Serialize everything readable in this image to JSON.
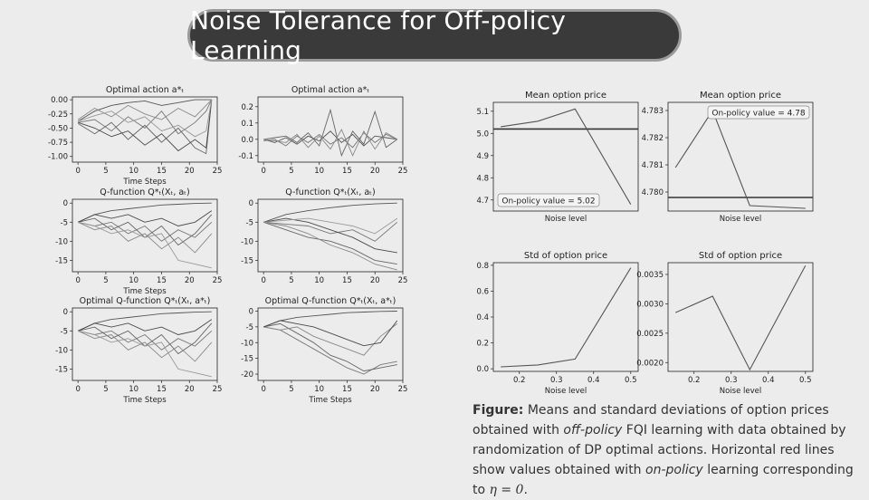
{
  "slide": {
    "title": "Noise Tolerance for Off-policy Learning",
    "caption": {
      "label": "Figure:",
      "p1": "Means and standard deviations of option prices obtained with",
      "i1": "off-policy",
      "p2": "FQI learning with data obtained by randomization of DP optimal actions. Horizontal red lines show values obtained with",
      "i2": "on-policy",
      "p3": "learning corresponding to",
      "math": "η = 0",
      "p4": "."
    }
  },
  "colors": {
    "background": "#ececec",
    "title_pill": "#3a3a3a",
    "line": "#555555",
    "reference_line": "#333333"
  },
  "chart_data": [
    {
      "id": "left-1",
      "type": "line",
      "title": "Optimal action a*ₜ",
      "xlabel": "Time Steps",
      "xlim": [
        -1,
        25
      ],
      "ylim": [
        -1.1,
        0.05
      ],
      "xticks": [
        "0",
        "5",
        "10",
        "15",
        "20",
        "25"
      ],
      "yticks": [
        "0.00",
        "-0.25",
        "-0.50",
        "-0.75",
        "-1.00"
      ],
      "series_note": "trajectories",
      "series": [
        {
          "x": [
            0,
            3,
            6,
            9,
            12,
            15,
            18,
            21,
            23,
            24
          ],
          "values": [
            -0.38,
            -0.2,
            -0.1,
            -0.05,
            -0.02,
            -0.1,
            -0.05,
            0.0,
            0.0,
            0.0
          ]
        },
        {
          "x": [
            0,
            3,
            6,
            9,
            12,
            15,
            18,
            21,
            23,
            24
          ],
          "values": [
            -0.4,
            -0.35,
            -0.55,
            -0.3,
            -0.5,
            -0.2,
            -0.6,
            -0.4,
            -0.2,
            0.0
          ]
        },
        {
          "x": [
            0,
            3,
            6,
            9,
            12,
            15,
            18,
            21,
            23,
            24
          ],
          "values": [
            -0.42,
            -0.6,
            -0.4,
            -0.7,
            -0.45,
            -0.75,
            -0.5,
            -0.85,
            -0.95,
            0.0
          ]
        },
        {
          "x": [
            0,
            3,
            6,
            9,
            12,
            15,
            18,
            21,
            23,
            24
          ],
          "values": [
            -0.35,
            -0.15,
            -0.3,
            -0.1,
            -0.25,
            -0.35,
            -0.15,
            -0.3,
            -0.1,
            0.0
          ]
        },
        {
          "x": [
            0,
            3,
            6,
            9,
            12,
            15,
            18,
            21,
            23,
            24
          ],
          "values": [
            -0.4,
            -0.5,
            -0.65,
            -0.55,
            -0.8,
            -0.6,
            -0.9,
            -0.7,
            -0.85,
            0.0
          ]
        },
        {
          "x": [
            0,
            3,
            6,
            9,
            12,
            15,
            18,
            21,
            23,
            24
          ],
          "values": [
            -0.38,
            -0.28,
            -0.2,
            -0.4,
            -0.3,
            -0.55,
            -0.45,
            -0.65,
            -0.55,
            0.0
          ]
        }
      ]
    },
    {
      "id": "left-2",
      "type": "line",
      "title": "Optimal action a*ₜ",
      "xlabel": "",
      "xlim": [
        -1,
        25
      ],
      "ylim": [
        -0.14,
        0.26
      ],
      "xticks": [
        "0",
        "5",
        "10",
        "15",
        "20",
        "25"
      ],
      "yticks": [
        "0.2",
        "0.1",
        "0.0",
        "-0.1"
      ],
      "series": [
        {
          "x": [
            0,
            2,
            4,
            6,
            8,
            10,
            12,
            14,
            16,
            18,
            20,
            22,
            24
          ],
          "values": [
            0.0,
            -0.02,
            0.01,
            -0.03,
            0.02,
            -0.01,
            0.05,
            -0.02,
            0.03,
            -0.04,
            0.02,
            0.01,
            0.0
          ]
        },
        {
          "x": [
            0,
            2,
            4,
            6,
            8,
            10,
            12,
            14,
            16,
            18,
            20,
            22,
            24
          ],
          "values": [
            -0.01,
            0.0,
            -0.04,
            0.02,
            -0.02,
            0.03,
            -0.03,
            0.01,
            -0.05,
            0.04,
            -0.02,
            0.03,
            0.0
          ]
        },
        {
          "x": [
            0,
            2,
            4,
            6,
            8,
            10,
            12,
            14,
            16,
            18,
            20,
            22,
            24
          ],
          "values": [
            0.0,
            0.01,
            0.02,
            -0.02,
            0.04,
            -0.04,
            0.18,
            -0.1,
            0.05,
            -0.03,
            0.17,
            -0.05,
            0.0
          ]
        },
        {
          "x": [
            0,
            2,
            4,
            6,
            8,
            10,
            12,
            14,
            16,
            18,
            20,
            22,
            24
          ],
          "values": [
            0.0,
            -0.01,
            -0.02,
            0.03,
            -0.05,
            0.02,
            -0.06,
            0.06,
            -0.1,
            0.05,
            -0.06,
            0.04,
            0.0
          ]
        }
      ]
    },
    {
      "id": "left-3",
      "type": "line",
      "title": "Q-function Q*ₜ(Xₜ, aₜ)",
      "xlabel": "Time Steps",
      "xlim": [
        -1,
        25
      ],
      "ylim": [
        -18,
        1
      ],
      "xticks": [
        "0",
        "5",
        "10",
        "15",
        "20",
        "25"
      ],
      "yticks": [
        "0",
        "-5",
        "-10",
        "-15"
      ],
      "series": [
        {
          "x": [
            0,
            3,
            6,
            9,
            12,
            15,
            18,
            21,
            24
          ],
          "values": [
            -5,
            -3,
            -2,
            -1.5,
            -1,
            -0.5,
            -0.3,
            -0.1,
            0
          ]
        },
        {
          "x": [
            0,
            3,
            6,
            9,
            12,
            15,
            18,
            21,
            24
          ],
          "values": [
            -5,
            -6,
            -5,
            -8,
            -6,
            -10,
            -7,
            -9,
            -5
          ]
        },
        {
          "x": [
            0,
            3,
            6,
            9,
            12,
            15,
            18,
            21,
            24
          ],
          "values": [
            -5,
            -4,
            -7,
            -5,
            -9,
            -6,
            -11,
            -8,
            -3
          ]
        },
        {
          "x": [
            0,
            3,
            6,
            9,
            12,
            15,
            18,
            21,
            24
          ],
          "values": [
            -5,
            -7,
            -6,
            -10,
            -8,
            -12,
            -9,
            -13,
            -8
          ]
        },
        {
          "x": [
            0,
            3,
            6,
            9,
            12,
            15,
            18,
            21,
            24
          ],
          "values": [
            -5,
            -3,
            -4,
            -3,
            -5,
            -4,
            -6,
            -5,
            -2
          ]
        },
        {
          "x": [
            0,
            3,
            6,
            9,
            12,
            15,
            18,
            21,
            24
          ],
          "values": [
            -5,
            -6,
            -8,
            -7,
            -9,
            -8,
            -15,
            -16,
            -17
          ]
        }
      ]
    },
    {
      "id": "left-4",
      "type": "line",
      "title": "Q-function Q*ₜ(Xₜ, aₜ)",
      "xlabel": "",
      "xlim": [
        -1,
        25
      ],
      "ylim": [
        -18,
        1
      ],
      "xticks": [
        "0",
        "5",
        "10",
        "15",
        "20",
        "25"
      ],
      "yticks": [
        "0",
        "-5",
        "-10",
        "-15"
      ],
      "series": [
        {
          "x": [
            0,
            4,
            8,
            12,
            16,
            20,
            24
          ],
          "values": [
            -5,
            -3,
            -2,
            -1.2,
            -0.6,
            -0.2,
            0
          ]
        },
        {
          "x": [
            0,
            4,
            8,
            12,
            16,
            20,
            24
          ],
          "values": [
            -5,
            -5.5,
            -6,
            -8,
            -7,
            -10,
            -5
          ]
        },
        {
          "x": [
            0,
            4,
            8,
            12,
            16,
            20,
            24
          ],
          "values": [
            -5,
            -7,
            -9,
            -10,
            -12,
            -15,
            -16
          ]
        },
        {
          "x": [
            0,
            4,
            8,
            12,
            16,
            20,
            24
          ],
          "values": [
            -5,
            -6,
            -8,
            -11,
            -13,
            -16,
            -17.5
          ]
        },
        {
          "x": [
            0,
            4,
            8,
            12,
            16,
            20,
            24
          ],
          "values": [
            -5,
            -4,
            -5,
            -7,
            -9,
            -12,
            -13
          ]
        },
        {
          "x": [
            0,
            4,
            8,
            12,
            16,
            20,
            24
          ],
          "values": [
            -5,
            -4.5,
            -4,
            -5,
            -6,
            -8,
            -4
          ]
        }
      ]
    },
    {
      "id": "left-5",
      "type": "line",
      "title": "Optimal Q-function Q*ₜ(Xₜ, a*ₜ)",
      "xlabel": "Time Steps",
      "xlim": [
        -1,
        25
      ],
      "ylim": [
        -18,
        1
      ],
      "xticks": [
        "0",
        "5",
        "10",
        "15",
        "20",
        "25"
      ],
      "yticks": [
        "0",
        "-5",
        "-10",
        "-15"
      ],
      "series": [
        {
          "x": [
            0,
            3,
            6,
            9,
            12,
            15,
            18,
            21,
            24
          ],
          "values": [
            -5,
            -3,
            -2,
            -1.5,
            -1,
            -0.5,
            -0.3,
            -0.1,
            0
          ]
        },
        {
          "x": [
            0,
            3,
            6,
            9,
            12,
            15,
            18,
            21,
            24
          ],
          "values": [
            -5,
            -6,
            -5,
            -8,
            -6,
            -10,
            -7,
            -9,
            -5
          ]
        },
        {
          "x": [
            0,
            3,
            6,
            9,
            12,
            15,
            18,
            21,
            24
          ],
          "values": [
            -5,
            -4,
            -7,
            -5,
            -9,
            -6,
            -11,
            -8,
            -3
          ]
        },
        {
          "x": [
            0,
            3,
            6,
            9,
            12,
            15,
            18,
            21,
            24
          ],
          "values": [
            -5,
            -7,
            -6,
            -10,
            -8,
            -12,
            -9,
            -13,
            -8
          ]
        },
        {
          "x": [
            0,
            3,
            6,
            9,
            12,
            15,
            18,
            21,
            24
          ],
          "values": [
            -5,
            -3,
            -4,
            -3,
            -5,
            -4,
            -6,
            -5,
            -2
          ]
        },
        {
          "x": [
            0,
            3,
            6,
            9,
            12,
            15,
            18,
            21,
            24
          ],
          "values": [
            -5,
            -6,
            -8,
            -7,
            -9,
            -8,
            -15,
            -16,
            -17
          ]
        }
      ]
    },
    {
      "id": "left-6",
      "type": "line",
      "title": "Optimal Q-function Q*ₜ(Xₜ, a*ₜ)",
      "xlabel": "Time Steps",
      "xlim": [
        -1,
        25
      ],
      "ylim": [
        -22,
        1
      ],
      "xticks": [
        "0",
        "5",
        "10",
        "15",
        "20",
        "25"
      ],
      "yticks": [
        "0",
        "-5",
        "-10",
        "-15",
        "-20"
      ],
      "series": [
        {
          "x": [
            0,
            3,
            6,
            9,
            12,
            15,
            18,
            21,
            24
          ],
          "values": [
            -5,
            -3,
            -2,
            -1.5,
            -1,
            -0.5,
            -0.3,
            -0.1,
            0
          ]
        },
        {
          "x": [
            0,
            3,
            6,
            9,
            12,
            15,
            18,
            21,
            24
          ],
          "values": [
            -5,
            -6,
            -9,
            -12,
            -15,
            -18,
            -20,
            -17,
            -16
          ]
        },
        {
          "x": [
            0,
            3,
            6,
            9,
            12,
            15,
            18,
            21,
            24
          ],
          "values": [
            -5,
            -4,
            -7,
            -10,
            -14,
            -16,
            -19,
            -18,
            -17
          ]
        },
        {
          "x": [
            0,
            3,
            6,
            9,
            12,
            15,
            18,
            21,
            24
          ],
          "values": [
            -5,
            -6,
            -5,
            -8,
            -10,
            -12,
            -14,
            -8,
            -4
          ]
        },
        {
          "x": [
            0,
            3,
            6,
            9,
            12,
            15,
            18,
            21,
            24
          ],
          "values": [
            -5,
            -3,
            -4,
            -5,
            -7,
            -9,
            -11,
            -10,
            -3
          ]
        }
      ]
    },
    {
      "id": "right-1",
      "type": "line",
      "title": "Mean option price",
      "xlabel": "Noise level",
      "xlim": [
        0.13,
        0.52
      ],
      "ylim": [
        4.65,
        5.14
      ],
      "xticks": [],
      "yticks": [
        "5.1",
        "5.0",
        "4.9",
        "4.8",
        "4.7"
      ],
      "ytick_values": [
        5.1,
        5.0,
        4.9,
        4.8,
        4.7
      ],
      "x": [
        0.15,
        0.25,
        0.35,
        0.5
      ],
      "values": [
        5.03,
        5.055,
        5.11,
        4.68
      ],
      "reference": 5.02,
      "reference_label": "On-policy value = 5.02",
      "reference_label_pos": "bottom-left"
    },
    {
      "id": "right-2",
      "type": "line",
      "title": "Mean option price",
      "xlabel": "Noise level",
      "xlim": [
        0.13,
        0.52
      ],
      "ylim": [
        4.7793,
        4.7833
      ],
      "xticks": [],
      "yticks": [
        "4.783",
        "4.782",
        "4.781",
        "4.780"
      ],
      "ytick_values": [
        4.783,
        4.782,
        4.781,
        4.78
      ],
      "x": [
        0.15,
        0.25,
        0.35,
        0.5
      ],
      "values": [
        4.7809,
        4.783,
        4.7795,
        4.7794
      ],
      "reference": 4.7798,
      "reference_label": "On-policy value = 4.78",
      "reference_label_pos": "top-right"
    },
    {
      "id": "right-3",
      "type": "line",
      "title": "Std of option price",
      "xlabel": "Noise level",
      "xlim": [
        0.13,
        0.52
      ],
      "ylim": [
        -0.02,
        0.82
      ],
      "xticks": [
        "0.2",
        "0.3",
        "0.4",
        "0.5"
      ],
      "xtick_values": [
        0.2,
        0.3,
        0.4,
        0.5
      ],
      "yticks": [
        "0.8",
        "0.6",
        "0.4",
        "0.2",
        "0.0"
      ],
      "ytick_values": [
        0.8,
        0.6,
        0.4,
        0.2,
        0.0
      ],
      "x": [
        0.15,
        0.25,
        0.35,
        0.5
      ],
      "values": [
        0.015,
        0.03,
        0.075,
        0.78
      ]
    },
    {
      "id": "right-4",
      "type": "line",
      "title": "Std of option price",
      "xlabel": "Noise level",
      "xlim": [
        0.13,
        0.52
      ],
      "ylim": [
        0.00185,
        0.0037
      ],
      "xticks": [
        "0.2",
        "0.3",
        "0.4",
        "0.5"
      ],
      "xtick_values": [
        0.2,
        0.3,
        0.4,
        0.5
      ],
      "yticks": [
        "0.0035",
        "0.0030",
        "0.0025",
        "0.0020"
      ],
      "ytick_values": [
        0.0035,
        0.003,
        0.0025,
        0.002
      ],
      "x": [
        0.15,
        0.25,
        0.35,
        0.5
      ],
      "values": [
        0.00285,
        0.00313,
        0.00188,
        0.00365
      ]
    }
  ]
}
